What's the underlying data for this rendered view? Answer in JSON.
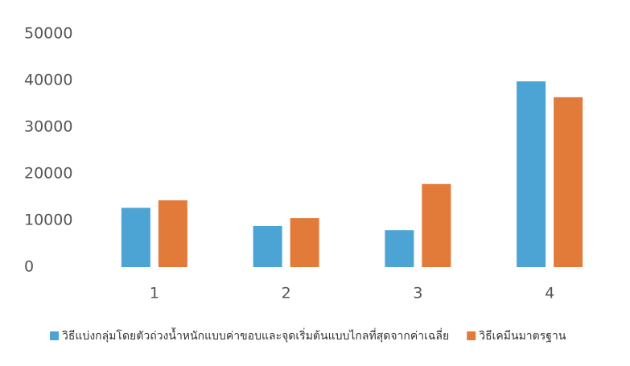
{
  "chart_data": {
    "type": "bar",
    "categories": [
      "1",
      "2",
      "3",
      "4"
    ],
    "series": [
      {
        "name": "วิธีแบ่งกลุ่มโดยตัวถ่วงน้ำหนักแบบค่าขอบและจุดเริ่มต้นแบบไกลที่สุดจากค่าเฉลี่ย",
        "color": "#4ba4d4",
        "values": [
          12700,
          8800,
          7900,
          39800
        ]
      },
      {
        "name": "วิธีเคมีนมาตรฐาน",
        "color": "#e27a3a",
        "values": [
          14300,
          10500,
          17800,
          36400
        ]
      }
    ],
    "ylim": [
      0,
      50000
    ],
    "yticks": [
      0,
      10000,
      20000,
      30000,
      40000,
      50000
    ],
    "grid": false,
    "legend": "bottom"
  }
}
